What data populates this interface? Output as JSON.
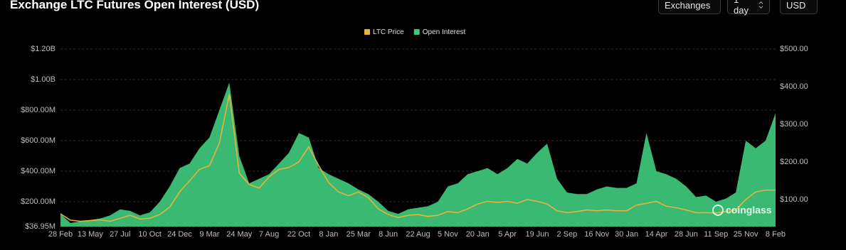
{
  "controls": [
    "Exchanges",
    "1 day",
    "USD"
  ],
  "chart_data": {
    "type": "combo",
    "title": "Exchange LTC Futures Open Interest (USD)",
    "watermark": "coinglass",
    "grid": true,
    "categories": [
      "28 Feb",
      null,
      null,
      "13 May",
      null,
      null,
      "27 Jul",
      null,
      null,
      "10 Oct",
      null,
      null,
      "24 Dec",
      null,
      null,
      "9 Mar",
      null,
      null,
      "24 May",
      null,
      null,
      "7 Aug",
      null,
      null,
      "22 Oct",
      null,
      null,
      "8 Jan",
      null,
      null,
      "25 Mar",
      null,
      null,
      "8 Jun",
      null,
      null,
      "22 Aug",
      null,
      null,
      "5 Nov",
      null,
      null,
      "20 Jan",
      null,
      null,
      "5 Apr",
      null,
      null,
      "19 Jun",
      null,
      null,
      "2 Sep",
      null,
      null,
      "16 Nov",
      null,
      null,
      "30 Jan",
      null,
      null,
      "14 Apr",
      null,
      null,
      "28 Jun",
      null,
      null,
      "11 Sep",
      null,
      null,
      "25 Nov",
      null,
      null,
      "8 Feb"
    ],
    "ylim": [
      36950000,
      1200000000
    ],
    "yticks": [
      {
        "value": 36950000,
        "label": "$36.95M"
      },
      {
        "value": 200000000,
        "label": "$200.00M"
      },
      {
        "value": 400000000,
        "label": "$400.00M"
      },
      {
        "value": 600000000,
        "label": "$600.00M"
      },
      {
        "value": 800000000,
        "label": "$800.00M"
      },
      {
        "value": 1000000000,
        "label": "$1.00B"
      },
      {
        "value": 1200000000,
        "label": "$1.20B"
      }
    ],
    "y2lim": [
      28,
      500
    ],
    "y2ticks": [
      {
        "value": 100,
        "label": "$100.00"
      },
      {
        "value": 200,
        "label": "$200.00"
      },
      {
        "value": 300,
        "label": "$300.00"
      },
      {
        "value": 400,
        "label": "$400.00"
      },
      {
        "value": 500,
        "label": "$500.00"
      }
    ],
    "series": [
      {
        "name": "LTC Price",
        "type": "line",
        "axis": "y2",
        "color": "#e8b339",
        "values": [
          62,
          45,
          42,
          44,
          46,
          42,
          50,
          58,
          48,
          50,
          60,
          80,
          120,
          150,
          180,
          190,
          250,
          380,
          170,
          140,
          130,
          160,
          180,
          185,
          200,
          240,
          190,
          145,
          120,
          110,
          120,
          105,
          75,
          60,
          52,
          58,
          60,
          55,
          58,
          68,
          65,
          75,
          88,
          95,
          92,
          95,
          90,
          100,
          95,
          88,
          70,
          65,
          68,
          72,
          70,
          72,
          70,
          70,
          85,
          90,
          95,
          82,
          78,
          72,
          65,
          65,
          64,
          68,
          72,
          100,
          120,
          125,
          125
        ]
      },
      {
        "name": "Open Interest",
        "type": "area",
        "axis": "y",
        "color": "#3ec97c",
        "values": [
          120000000,
          60000000,
          70000000,
          80000000,
          90000000,
          110000000,
          150000000,
          140000000,
          110000000,
          130000000,
          200000000,
          300000000,
          420000000,
          450000000,
          550000000,
          620000000,
          800000000,
          980000000,
          500000000,
          320000000,
          350000000,
          380000000,
          450000000,
          520000000,
          650000000,
          620000000,
          420000000,
          380000000,
          350000000,
          320000000,
          280000000,
          250000000,
          200000000,
          140000000,
          120000000,
          150000000,
          160000000,
          170000000,
          200000000,
          300000000,
          320000000,
          380000000,
          400000000,
          420000000,
          380000000,
          420000000,
          480000000,
          450000000,
          520000000,
          580000000,
          350000000,
          260000000,
          250000000,
          250000000,
          280000000,
          300000000,
          290000000,
          290000000,
          320000000,
          650000000,
          400000000,
          380000000,
          350000000,
          300000000,
          230000000,
          240000000,
          200000000,
          220000000,
          260000000,
          600000000,
          550000000,
          600000000,
          780000000
        ]
      }
    ]
  }
}
